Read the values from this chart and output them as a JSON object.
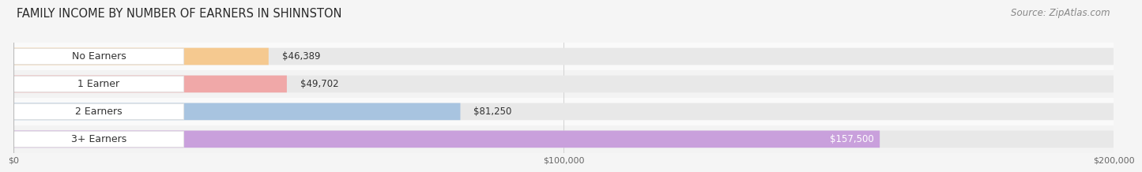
{
  "title": "FAMILY INCOME BY NUMBER OF EARNERS IN SHINNSTON",
  "source": "Source: ZipAtlas.com",
  "categories": [
    "No Earners",
    "1 Earner",
    "2 Earners",
    "3+ Earners"
  ],
  "values": [
    46389,
    49702,
    81250,
    157500
  ],
  "bar_colors": [
    "#f5c990",
    "#f0a8a8",
    "#a8c4e0",
    "#c9a0dc"
  ],
  "label_colors": [
    "#333333",
    "#333333",
    "#333333",
    "#ffffff"
  ],
  "value_labels": [
    "$46,389",
    "$49,702",
    "$81,250",
    "$157,500"
  ],
  "xmax": 200000,
  "xticks": [
    0,
    100000,
    200000
  ],
  "xtick_labels": [
    "$0",
    "$100,000",
    "$200,000"
  ],
  "title_fontsize": 10.5,
  "source_fontsize": 8.5,
  "cat_fontsize": 9,
  "val_fontsize": 8.5,
  "background_color": "#f5f5f5",
  "bar_bg_color": "#e8e8e8",
  "row_bg_colors": [
    "#fafafa",
    "#f3f3f3",
    "#fafafa",
    "#f3f3f3"
  ]
}
